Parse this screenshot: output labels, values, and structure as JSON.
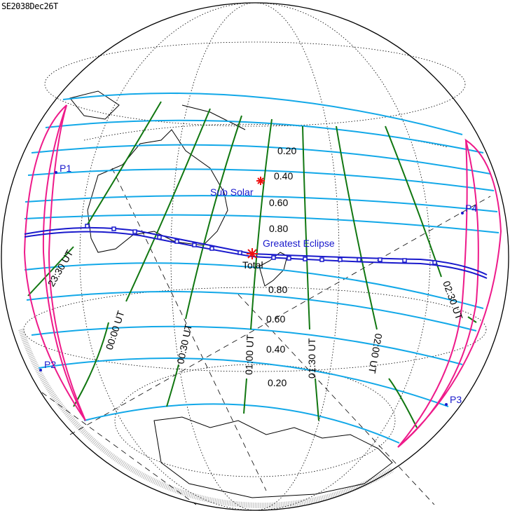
{
  "title": "SE2038Dec26T",
  "magnitude_labels": {
    "north": [
      "0.20",
      "0.40",
      "0.60",
      "0.80"
    ],
    "south": [
      "0.80",
      "0.60",
      "0.40",
      "0.20"
    ]
  },
  "time_labels": [
    "23:30 UT",
    "00:00 UT",
    "00:30 UT",
    "01:00 UT",
    "01:30 UT",
    "02:00 UT",
    "02:30 UT"
  ],
  "points": {
    "p1": "P1",
    "p2": "P2",
    "p3": "P3",
    "p4": "P4"
  },
  "sub_solar_label": "Sub Solar",
  "greatest_eclipse_label": "Greatest Eclipse",
  "eclipse_type_label": "Total",
  "colors": {
    "magnitude": "#12a8e8",
    "time": "#117711",
    "limits": "#ee1a8a",
    "central_path": "#1a1acc",
    "marker": "#ee1111"
  }
}
